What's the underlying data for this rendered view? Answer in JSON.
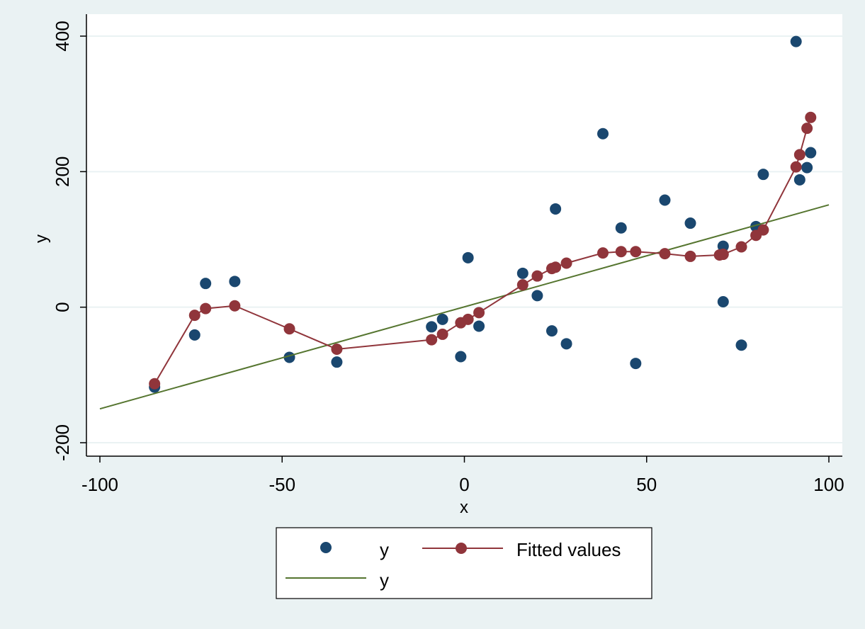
{
  "chart_data": {
    "type": "scatter",
    "title": "",
    "xlabel": "x",
    "ylabel": "y",
    "xlim": [
      -100,
      100
    ],
    "ylim": [
      -200,
      400
    ],
    "x_ticks": [
      -100,
      -50,
      0,
      50,
      100
    ],
    "y_ticks": [
      -200,
      0,
      200,
      400
    ],
    "grid": true,
    "legend_position": "bottom",
    "colors": {
      "scatter": "#1a476f",
      "fitted": "#90353b",
      "line": "#55752f",
      "grid": "#eaf2f3",
      "plot_bg": "#ffffff",
      "outer_bg": "#eaf2f3"
    },
    "series": [
      {
        "name": "y",
        "kind": "scatter",
        "points": [
          [
            -85,
            -118
          ],
          [
            -74,
            -41
          ],
          [
            -71,
            35
          ],
          [
            -63,
            38
          ],
          [
            -48,
            -74
          ],
          [
            -35,
            -81
          ],
          [
            -9,
            -29
          ],
          [
            -6,
            -18
          ],
          [
            -1,
            -73
          ],
          [
            1,
            73
          ],
          [
            4,
            -28
          ],
          [
            16,
            50
          ],
          [
            20,
            17
          ],
          [
            24,
            -35
          ],
          [
            25,
            145
          ],
          [
            28,
            -54
          ],
          [
            38,
            256
          ],
          [
            43,
            117
          ],
          [
            47,
            -83
          ],
          [
            55,
            158
          ],
          [
            62,
            124
          ],
          [
            71,
            90
          ],
          [
            71,
            8
          ],
          [
            76,
            -56
          ],
          [
            80,
            119
          ],
          [
            82,
            196
          ],
          [
            91,
            392
          ],
          [
            92,
            188
          ],
          [
            94,
            206
          ],
          [
            95,
            228
          ]
        ]
      },
      {
        "name": "Fitted values",
        "kind": "line-marker",
        "points": [
          [
            -85,
            -113
          ],
          [
            -74,
            -12
          ],
          [
            -71,
            -2
          ],
          [
            -63,
            2
          ],
          [
            -48,
            -32
          ],
          [
            -35,
            -62
          ],
          [
            -9,
            -48
          ],
          [
            -6,
            -40
          ],
          [
            -1,
            -23
          ],
          [
            1,
            -18
          ],
          [
            4,
            -8
          ],
          [
            16,
            33
          ],
          [
            20,
            46
          ],
          [
            24,
            57
          ],
          [
            25,
            59
          ],
          [
            28,
            65
          ],
          [
            38,
            80
          ],
          [
            43,
            82
          ],
          [
            47,
            82
          ],
          [
            55,
            79
          ],
          [
            62,
            75
          ],
          [
            70,
            77
          ],
          [
            71,
            78
          ],
          [
            76,
            89
          ],
          [
            80,
            106
          ],
          [
            82,
            114
          ],
          [
            91,
            207
          ],
          [
            92,
            225
          ],
          [
            94,
            264
          ],
          [
            95,
            280
          ]
        ]
      },
      {
        "name": "y",
        "kind": "line",
        "points": [
          [
            -100,
            -150
          ],
          [
            100,
            151
          ]
        ]
      }
    ]
  }
}
